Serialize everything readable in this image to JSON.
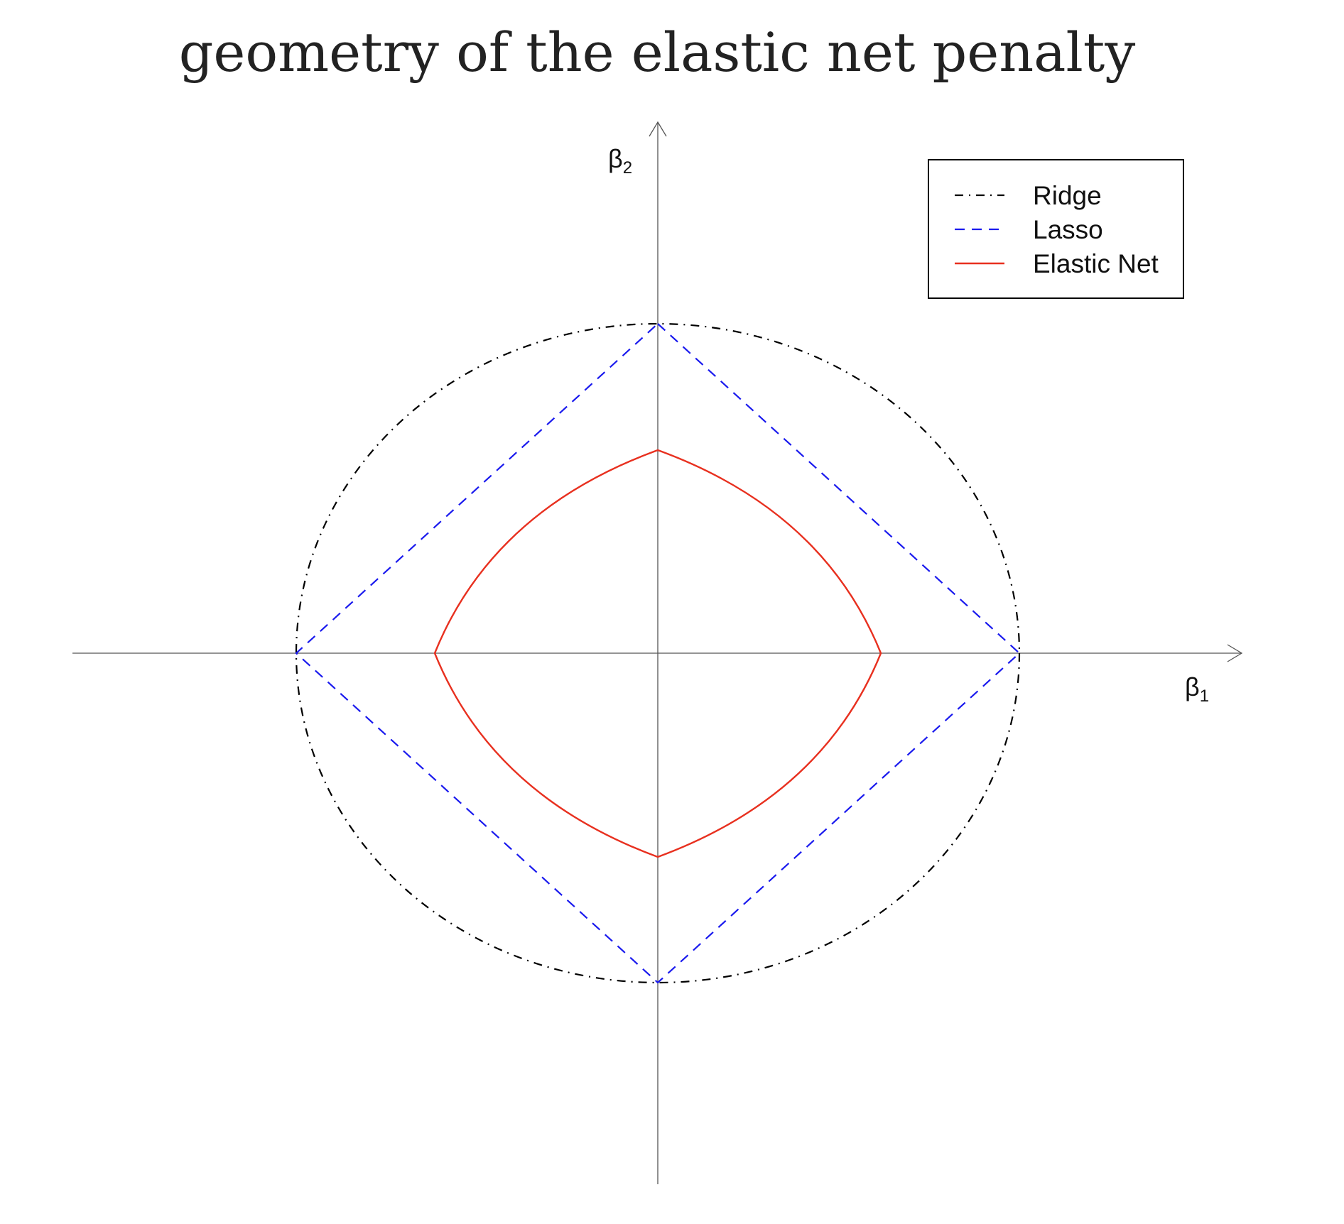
{
  "title": "geometry of the elastic net penalty",
  "axes": {
    "x_label": {
      "symbol": "β",
      "subscript": "1"
    },
    "y_label": {
      "symbol": "β",
      "subscript": "2"
    }
  },
  "legend": {
    "placement": "top-right",
    "entries": [
      {
        "label": "Ridge",
        "color": "#000000",
        "style": "dash-dot"
      },
      {
        "label": "Lasso",
        "color": "#1a1aee",
        "style": "dashed"
      },
      {
        "label": "Elastic Net",
        "color": "#e8301f",
        "style": "solid"
      }
    ]
  },
  "colors": {
    "axis": "#555555",
    "ridge": "#000000",
    "lasso": "#1a1aee",
    "elastic_net": "#e8301f"
  }
}
